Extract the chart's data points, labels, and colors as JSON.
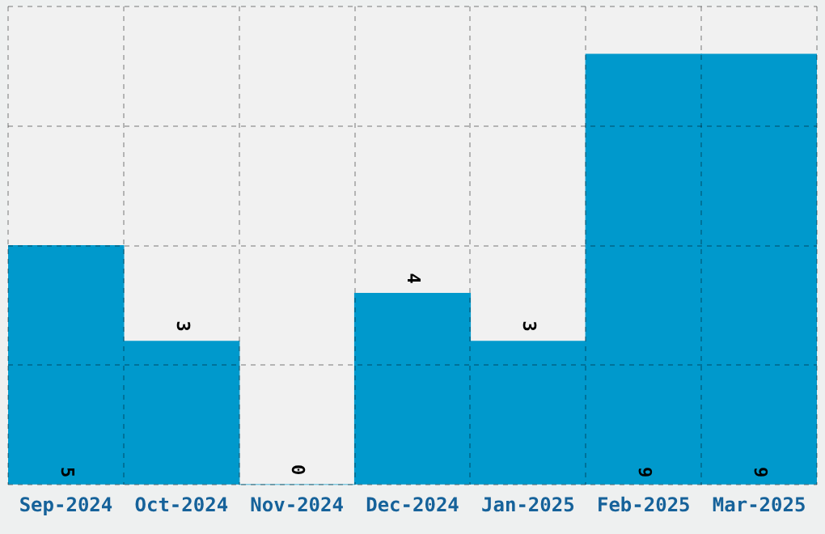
{
  "chart_data": {
    "type": "bar",
    "categories": [
      "Sep-2024",
      "Oct-2024",
      "Nov-2024",
      "Dec-2024",
      "Jan-2025",
      "Feb-2025",
      "Mar-2025"
    ],
    "values": [
      5,
      3,
      0,
      4,
      3,
      9,
      9
    ],
    "color": "#0099cc",
    "ylim": [
      0,
      10
    ],
    "yticks": [
      {
        "value": 0,
        "label": null
      },
      {
        "value": 2.5,
        "label": null
      },
      {
        "value": 5,
        "label": null
      },
      {
        "value": 7.5,
        "label": null
      },
      {
        "value": 10,
        "label": null
      }
    ],
    "tick_labels": "x",
    "grid": true,
    "data_labels": true
  }
}
